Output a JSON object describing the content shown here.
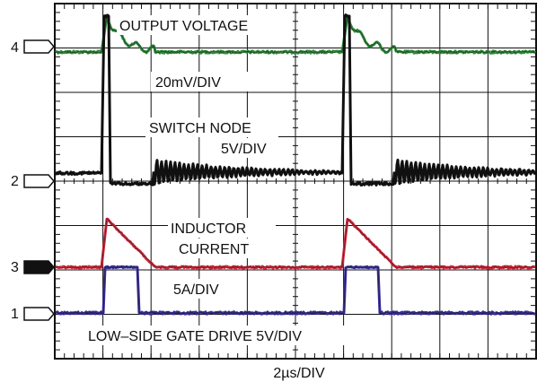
{
  "chart_data": {
    "type": "line",
    "title": "",
    "xlabel": "2µs/DIV",
    "ylabel": "",
    "grid": true,
    "grid_divisions": {
      "x": 10,
      "y": 8
    },
    "annotations": [
      {
        "id": "output_voltage_title",
        "text": "OUTPUT VOLTAGE"
      },
      {
        "id": "output_voltage_scale",
        "text": "20mV/DIV"
      },
      {
        "id": "switch_node_title",
        "text": "SWITCH NODE"
      },
      {
        "id": "switch_node_scale",
        "text": "5V/DIV"
      },
      {
        "id": "inductor_title_1",
        "text": "INDUCTOR"
      },
      {
        "id": "inductor_title_2",
        "text": "CURRENT"
      },
      {
        "id": "inductor_scale",
        "text": "5A/DIV"
      },
      {
        "id": "gate_drive",
        "text": "LOW–SIDE GATE DRIVE 5V/DIV"
      }
    ],
    "channel_markers": [
      {
        "label": "4",
        "filled": false
      },
      {
        "label": "2",
        "filled": false
      },
      {
        "label": "3",
        "filled": true
      },
      {
        "label": "1",
        "filled": false
      }
    ],
    "series": [
      {
        "channel": "4",
        "color": "#2e8b3a",
        "units": "div"
      },
      {
        "channel": "2",
        "color": "#111111",
        "units": "div"
      },
      {
        "channel": "3",
        "color": "#d0283c",
        "units": "div"
      },
      {
        "channel": "1",
        "color": "#3a2f9a",
        "units": "div"
      }
    ]
  }
}
